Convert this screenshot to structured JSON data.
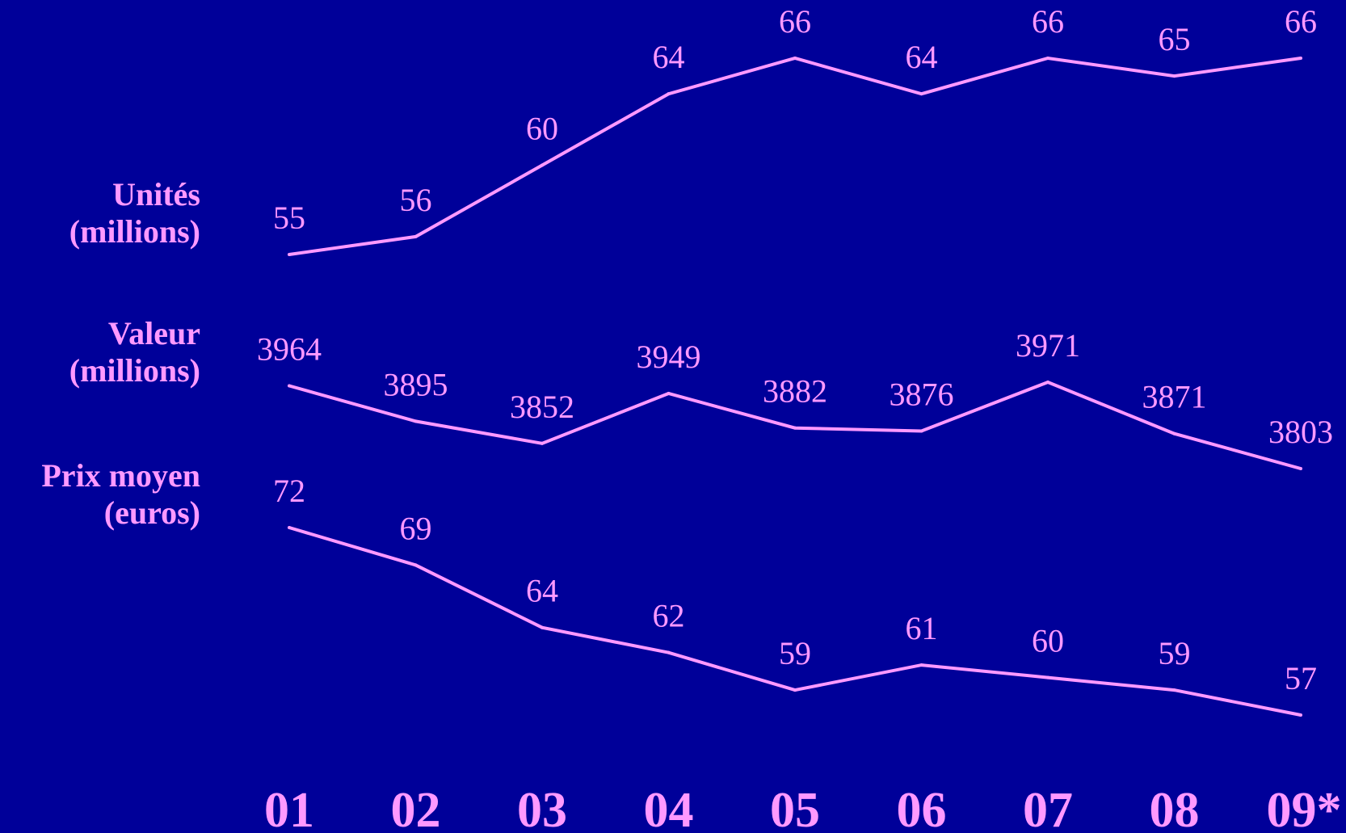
{
  "chart_data": {
    "type": "line",
    "categories": [
      "01",
      "02",
      "03",
      "04",
      "05",
      "06",
      "07",
      "08",
      "09*"
    ],
    "series": [
      {
        "name": "Unités (millions)",
        "name_lines": [
          "Unités",
          "(millions)"
        ],
        "values": [
          55,
          56,
          60,
          64,
          66,
          64,
          66,
          65,
          66
        ]
      },
      {
        "name": "Valeur (millions)",
        "name_lines": [
          "Valeur",
          "(millions)"
        ],
        "values": [
          3964,
          3895,
          3852,
          3949,
          3882,
          3876,
          3971,
          3871,
          3803
        ]
      },
      {
        "name": "Prix moyen (euros)",
        "name_lines": [
          "Prix moyen",
          "(euros)"
        ],
        "values": [
          72,
          69,
          64,
          62,
          59,
          61,
          60,
          59,
          57
        ]
      }
    ],
    "grid": false,
    "legend": "left"
  },
  "colors": {
    "background": "#000099",
    "accent": "#ff99ff"
  }
}
